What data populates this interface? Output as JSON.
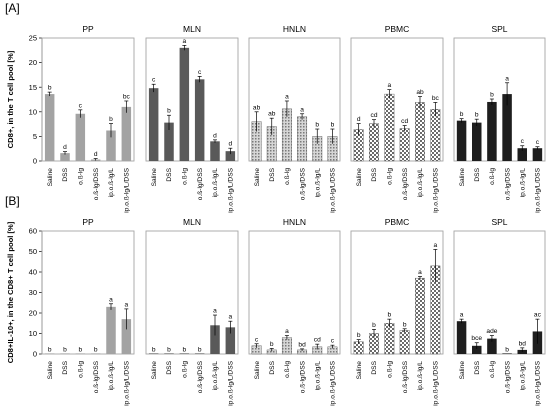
{
  "chart_data": [
    {
      "panel_label": "[A]",
      "type": "bar",
      "ylabel": "CD8+, in the T cell pool [%]",
      "ylim": [
        0,
        25
      ],
      "yticks": [
        0,
        5,
        10,
        15,
        20,
        25
      ],
      "categories": [
        "Saline",
        "DSS",
        "o.ß-lg",
        "o.ß-lg/DSS",
        "ip.o.ß-lg/L",
        "ip.o.ß-lg/L/DSS"
      ],
      "groups": [
        {
          "name": "PP",
          "color": "#a3a3a3",
          "pattern": "solid",
          "values": [
            13.6,
            1.6,
            9.6,
            0.3,
            6.2,
            11.0
          ],
          "errors": [
            0.4,
            0.3,
            0.8,
            0.2,
            1.4,
            1.2
          ],
          "letters": [
            "b",
            "d",
            "c",
            "d",
            "b",
            "bc"
          ]
        },
        {
          "name": "MLN",
          "color": "#595959",
          "pattern": "solid",
          "values": [
            14.8,
            7.8,
            23.0,
            16.6,
            4.0,
            2.0
          ],
          "errors": [
            0.8,
            1.5,
            0.5,
            0.6,
            0.3,
            0.6
          ],
          "letters": [
            "c",
            "b",
            "a",
            "c",
            "d",
            "d"
          ]
        },
        {
          "name": "HNLN",
          "color": "#c2c2c2",
          "pattern": "dots",
          "values": [
            8.0,
            7.0,
            10.6,
            9.0,
            5.0,
            5.0
          ],
          "errors": [
            2.0,
            1.7,
            1.6,
            0.6,
            1.5,
            1.5
          ],
          "letters": [
            "ab",
            "ab",
            "a",
            "a",
            "b",
            "b"
          ]
        },
        {
          "name": "PBMC",
          "color": "#8c8c8c",
          "pattern": "checker",
          "values": [
            6.4,
            7.6,
            13.6,
            6.6,
            11.9,
            10.5
          ],
          "errors": [
            1.2,
            0.8,
            0.9,
            0.6,
            1.2,
            1.4
          ],
          "letters": [
            "d",
            "cd",
            "a",
            "cd",
            "ab",
            "bc"
          ]
        },
        {
          "name": "SPL",
          "color": "#1e1e1e",
          "pattern": "solid",
          "values": [
            8.2,
            7.8,
            12.0,
            13.6,
            2.6,
            2.6
          ],
          "errors": [
            0.4,
            0.7,
            0.6,
            2.3,
            0.5,
            0.3
          ],
          "letters": [
            "b",
            "b",
            "b",
            "a",
            "c",
            "c"
          ]
        }
      ]
    },
    {
      "panel_label": "[B]",
      "type": "bar",
      "ylabel": "CD8+IL-10+, in the CD8+ T cell pool [%]",
      "ylim": [
        0,
        60
      ],
      "yticks": [
        0,
        10,
        20,
        30,
        40,
        50,
        60
      ],
      "categories": [
        "Saline",
        "DSS",
        "o.ß-lg",
        "o.ß-lg/DSS",
        "ip.o.ß-lg/L",
        "ip.o.ß-lg/L/DSS"
      ],
      "groups": [
        {
          "name": "PP",
          "color": "#a3a3a3",
          "pattern": "solid",
          "values": [
            0,
            0,
            0,
            0,
            23.0,
            17.0
          ],
          "errors": [
            0,
            0,
            0,
            0,
            1.5,
            5.0
          ],
          "letters": [
            "b",
            "b",
            "b",
            "b",
            "a",
            "a"
          ]
        },
        {
          "name": "MLN",
          "color": "#595959",
          "pattern": "solid",
          "values": [
            0,
            0,
            0,
            0,
            14.0,
            13.0
          ],
          "errors": [
            0,
            0,
            0,
            0,
            5.0,
            3.0
          ],
          "letters": [
            "b",
            "b",
            "b",
            "b",
            "a",
            "a"
          ]
        },
        {
          "name": "HNLN",
          "color": "#c2c2c2",
          "pattern": "dots",
          "values": [
            4.0,
            2.0,
            8.0,
            2.0,
            3.5,
            3.5
          ],
          "errors": [
            1.0,
            0.7,
            1.0,
            0.5,
            1.3,
            0.8
          ],
          "letters": [
            "c",
            "b",
            "a",
            "bd",
            "cd",
            "c"
          ]
        },
        {
          "name": "PBMC",
          "color": "#8c8c8c",
          "pattern": "checker",
          "values": [
            6.0,
            10.0,
            15.0,
            11.5,
            37.0,
            43.0
          ],
          "errors": [
            1.0,
            2.0,
            2.0,
            0.8,
            0.8,
            8.0
          ],
          "letters": [
            "b",
            "b",
            "b",
            "b",
            "a",
            "a"
          ]
        },
        {
          "name": "SPL",
          "color": "#1e1e1e",
          "pattern": "solid",
          "values": [
            16.0,
            4.0,
            7.5,
            0,
            2.0,
            11.0
          ],
          "errors": [
            1.0,
            1.5,
            1.5,
            0,
            1.0,
            6.0
          ],
          "letters": [
            "a",
            "bce",
            "ade",
            "b",
            "bd",
            "ac"
          ]
        }
      ]
    }
  ]
}
